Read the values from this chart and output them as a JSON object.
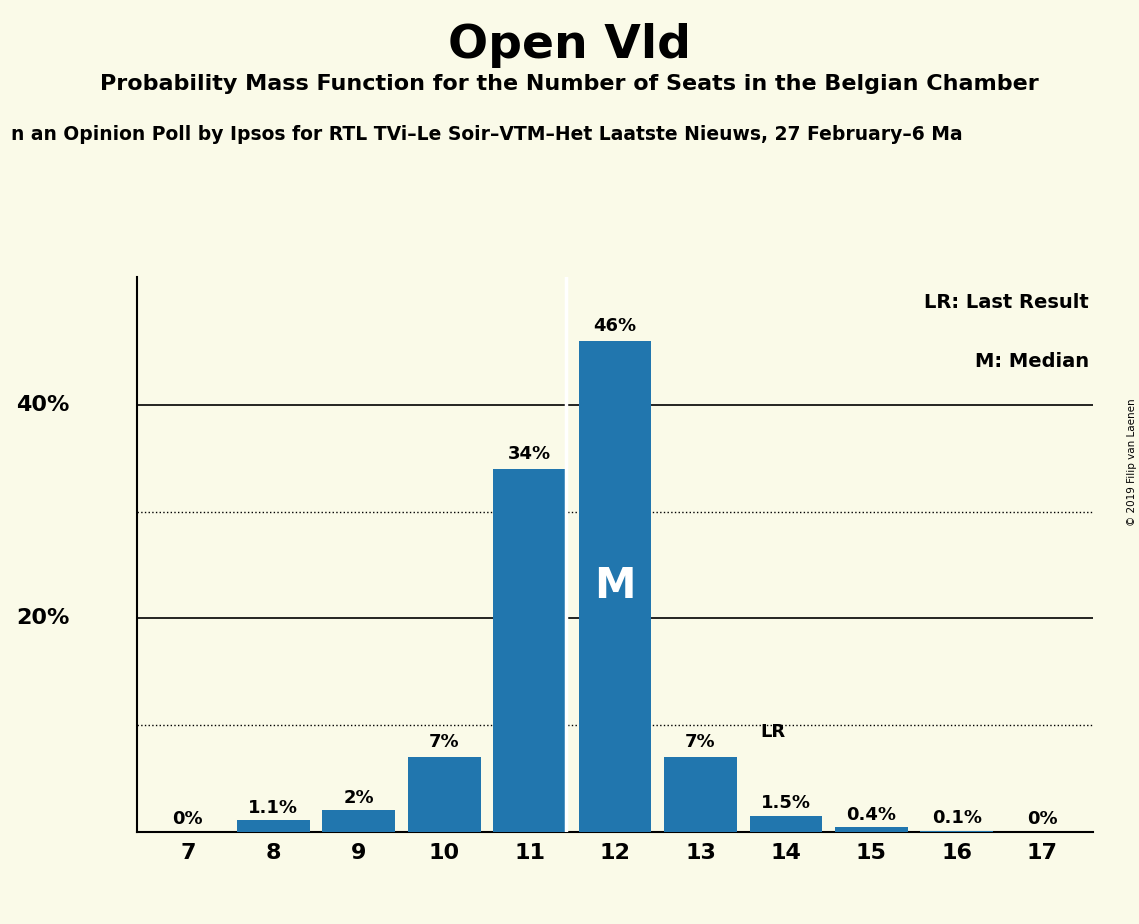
{
  "title": "Open Vld",
  "subtitle": "Probability Mass Function for the Number of Seats in the Belgian Chamber",
  "source_line": "n an Opinion Poll by Ipsos for RTL TVi–Le Soir–VTM–Het Laatste Nieuws, 27 February–6 Ma",
  "copyright": "© 2019 Filip van Laenen",
  "categories": [
    7,
    8,
    9,
    10,
    11,
    12,
    13,
    14,
    15,
    16,
    17
  ],
  "values": [
    0.0,
    1.1,
    2.0,
    7.0,
    34.0,
    46.0,
    7.0,
    1.5,
    0.4,
    0.1,
    0.0
  ],
  "labels": [
    "0%",
    "1.1%",
    "2%",
    "7%",
    "34%",
    "46%",
    "7%",
    "1.5%",
    "0.4%",
    "0.1%",
    "0%"
  ],
  "bar_color": "#2176AE",
  "background_color": "#FAFAE8",
  "median_bar": 12,
  "lr_bar": 14,
  "ylim": [
    0,
    52
  ],
  "solid_yticks": [
    20,
    40
  ],
  "dotted_yticks": [
    10,
    30
  ],
  "ylabel_ticks": [
    20,
    40
  ],
  "ylabel_labels": [
    "20%",
    "40%"
  ]
}
